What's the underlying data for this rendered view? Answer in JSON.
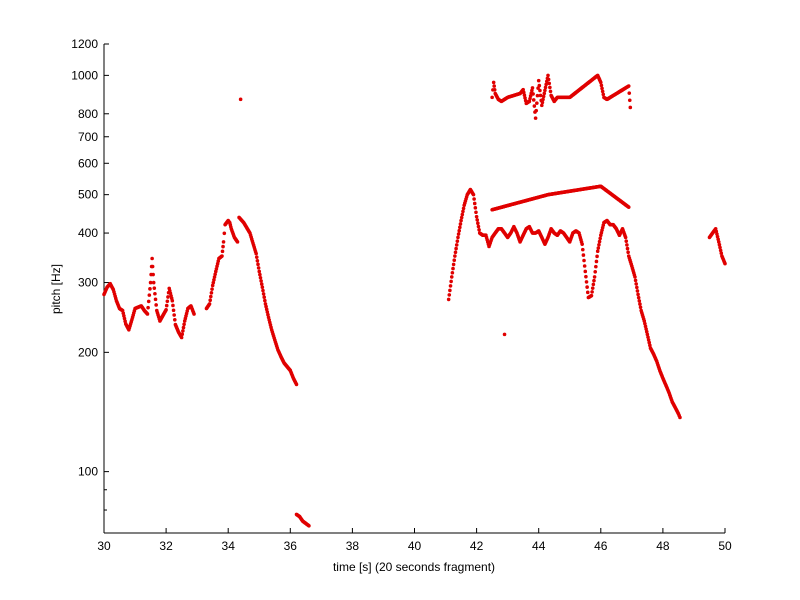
{
  "chart_data": {
    "type": "scatter",
    "title": "",
    "xlabel": "time [s] (20 seconds fragment)",
    "ylabel": "pitch [Hz]",
    "xlim": [
      30,
      50
    ],
    "ylim": [
      70,
      1200
    ],
    "yscale": "log",
    "grid": false,
    "marker_color": "#e00000",
    "xticks": [
      30,
      32,
      34,
      36,
      38,
      40,
      42,
      44,
      46,
      48,
      50
    ],
    "yticks_labeled": [
      100,
      200,
      300,
      400,
      500,
      600,
      700,
      800,
      1000,
      1200
    ],
    "yticks_minor": [
      70,
      80,
      90
    ],
    "segments": [
      {
        "x": [
          30.0,
          30.1,
          30.2,
          30.3,
          30.4,
          30.5,
          30.6,
          30.7,
          30.8,
          30.9,
          31.0,
          31.1,
          31.2,
          31.3,
          31.4,
          31.5,
          31.55,
          31.6,
          31.7,
          31.8,
          31.9,
          32.0,
          32.1,
          32.2,
          32.3,
          32.4,
          32.5,
          32.6,
          32.7,
          32.8,
          32.9
        ],
        "y": [
          280,
          292,
          298,
          288,
          270,
          258,
          255,
          236,
          228,
          242,
          258,
          260,
          262,
          255,
          250,
          300,
          345,
          300,
          255,
          240,
          248,
          256,
          290,
          270,
          235,
          225,
          218,
          240,
          258,
          262,
          250
        ]
      },
      {
        "x": [
          33.3,
          33.4,
          33.5,
          33.6,
          33.7,
          33.8,
          33.85,
          33.9,
          34.0,
          34.05,
          34.1,
          34.2,
          34.3
        ],
        "y": [
          258,
          265,
          295,
          320,
          345,
          350,
          380,
          420,
          430,
          425,
          410,
          390,
          380
        ]
      },
      {
        "x": [
          34.4
        ],
        "y": [
          870
        ]
      },
      {
        "x": [
          34.35,
          34.5,
          34.7,
          34.9,
          35.0,
          35.1,
          35.2,
          35.3,
          35.4,
          35.5,
          35.6,
          35.7,
          35.8,
          35.9,
          36.0,
          36.1,
          36.2
        ],
        "y": [
          438,
          425,
          400,
          355,
          320,
          292,
          265,
          245,
          228,
          215,
          203,
          195,
          188,
          184,
          180,
          172,
          166
        ]
      },
      {
        "x": [
          36.2,
          36.3,
          36.4,
          36.5,
          36.6
        ],
        "y": [
          78,
          77,
          75,
          74,
          73
        ]
      },
      {
        "x": [
          41.1,
          41.2,
          41.3,
          41.4,
          41.5,
          41.6,
          41.7,
          41.8,
          41.9,
          42.0,
          42.1,
          42.2,
          42.3,
          42.4,
          42.5,
          42.6,
          42.7,
          42.8,
          42.9,
          43.0,
          43.1,
          43.2,
          43.3,
          43.4,
          43.5,
          43.6,
          43.7,
          43.8,
          43.9,
          44.0,
          44.1,
          44.2,
          44.3,
          44.4,
          44.5,
          44.6,
          44.7,
          44.8,
          44.9,
          45.0,
          45.1,
          45.2,
          45.3,
          45.4,
          45.5,
          45.6,
          45.7,
          45.8,
          45.9,
          46.0,
          46.1,
          46.2,
          46.3,
          46.4,
          46.5,
          46.6,
          46.7,
          46.8,
          46.9,
          47.0,
          47.1,
          47.2,
          47.3,
          47.4,
          47.5,
          47.6,
          47.7,
          47.8,
          47.9,
          48.0,
          48.1,
          48.2,
          48.3,
          48.4,
          48.5,
          48.55
        ],
        "y": [
          272,
          310,
          350,
          390,
          430,
          470,
          500,
          515,
          500,
          440,
          400,
          395,
          395,
          370,
          390,
          400,
          410,
          410,
          400,
          390,
          400,
          415,
          400,
          380,
          395,
          410,
          415,
          400,
          400,
          405,
          390,
          375,
          390,
          410,
          400,
          395,
          405,
          400,
          390,
          380,
          400,
          405,
          400,
          375,
          320,
          275,
          278,
          310,
          360,
          395,
          425,
          430,
          420,
          420,
          410,
          395,
          410,
          390,
          350,
          330,
          310,
          280,
          255,
          240,
          222,
          205,
          198,
          190,
          180,
          172,
          165,
          158,
          150,
          145,
          140,
          137
        ]
      },
      {
        "x": [
          42.5,
          44.3,
          46.0,
          46.9,
          42.9
        ],
        "y": [
          458,
          500,
          525,
          465,
          222
        ]
      },
      {
        "x": [
          42.5,
          42.55,
          42.6,
          42.7,
          42.8,
          42.9,
          43.0,
          43.4,
          43.5,
          43.6,
          43.7,
          43.8,
          43.9,
          44.0,
          44.1,
          44.3,
          44.4,
          44.5,
          44.6,
          45.0,
          45.9,
          46.0,
          46.1,
          46.2,
          46.9,
          46.95
        ],
        "y": [
          880,
          960,
          900,
          870,
          860,
          870,
          880,
          900,
          920,
          850,
          860,
          930,
          780,
          970,
          840,
          1000,
          890,
          860,
          880,
          880,
          1000,
          960,
          880,
          870,
          940,
          830
        ]
      },
      {
        "x": [
          49.5,
          49.6,
          49.7,
          49.8,
          49.9,
          50.0
        ],
        "y": [
          390,
          400,
          410,
          380,
          350,
          335
        ]
      }
    ]
  }
}
